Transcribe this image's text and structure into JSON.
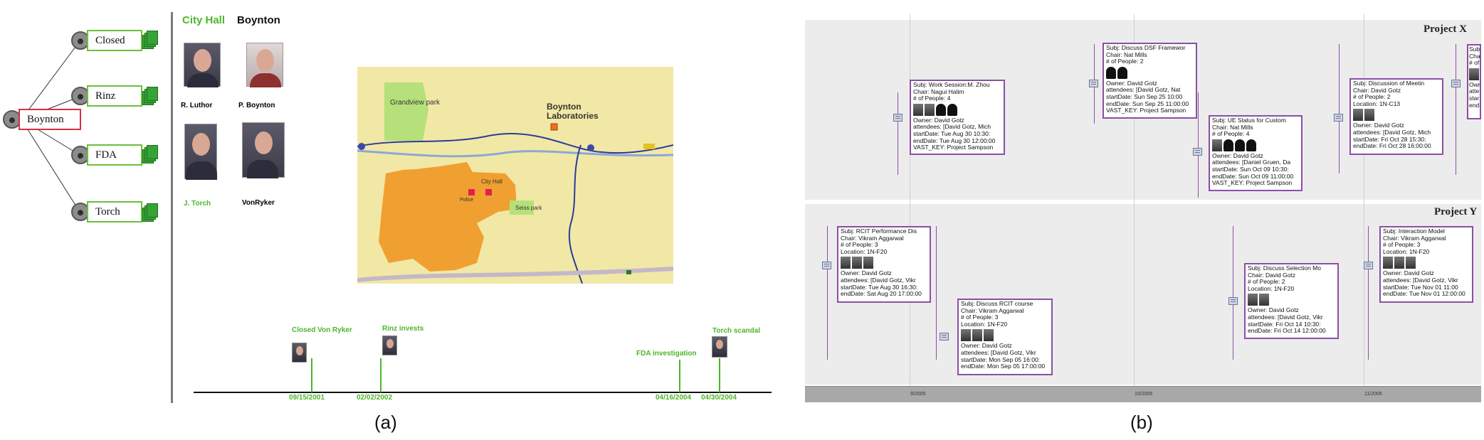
{
  "panel_a": {
    "tree": {
      "root": "Boynton",
      "children": [
        "Closed",
        "Rinz",
        "FDA",
        "Torch"
      ]
    },
    "categories": {
      "city_hall": "City Hall",
      "boynton": "Boynton"
    },
    "people": [
      {
        "name": "R. Luthor",
        "color": "#000000"
      },
      {
        "name": "P. Boynton",
        "color": "#000000"
      },
      {
        "name": "J. Torch",
        "color": "#4db52a"
      },
      {
        "name": "VonRyker",
        "color": "#000000"
      }
    ],
    "map": {
      "labels": {
        "grandview": "Grandview park",
        "boynton_labs": "Boynton Laboratories",
        "city_hall": "City Hall",
        "police": "Police",
        "seiss": "Seiss park"
      }
    },
    "timeline": {
      "events": [
        {
          "label": "Closed Von Ryker",
          "date": "09/15/2001"
        },
        {
          "label": "Rinz invests",
          "date": "02/02/2002"
        },
        {
          "label": "FDA investigation",
          "date": "04/16/2004"
        },
        {
          "label": "Torch scandal",
          "date": "04/30/2004"
        }
      ]
    },
    "caption": "(a)"
  },
  "panel_b": {
    "projects": {
      "x": "Project X",
      "y": "Project Y"
    },
    "axis_ticks": [
      "9/2005",
      "10/2005",
      "11/2005"
    ],
    "cards_x": [
      {
        "lines": [
          "Subj: Work Session:M. Zhou",
          "Chair: Nagui Halim",
          "# of People: 4"
        ],
        "faces": [
          "p",
          "p",
          "s",
          "s"
        ],
        "after": [
          "Owner: David Gotz",
          "attendees: [David Gotz, Mich",
          "startDate: Tue Aug 30 10:30:",
          "endDate: Tue Aug 30 12:00:00",
          "VAST_KEY: Project Sampson"
        ]
      },
      {
        "lines": [
          "Subj: Discuss DSF Framewor",
          "Chair: Nat Mills",
          "# of People: 2"
        ],
        "faces": [
          "s",
          "s"
        ],
        "after": [
          "Owner: David Gotz",
          "attendees: [David Gotz, Nat",
          "startDate: Sun Sep 25 10:00",
          "endDate: Sun Sep 25 11:00:00",
          "VAST_KEY: Project Sampson"
        ]
      },
      {
        "lines": [
          "Subj: UE Status for Custom",
          "Chair: Nat Mills",
          "# of People: 4"
        ],
        "faces": [
          "p",
          "s",
          "s",
          "s"
        ],
        "after": [
          "Owner: David Gotz",
          "attendees: [Daniel Gruen, Da",
          "startDate: Sun Oct 09 10:30:",
          "endDate: Sun Oct 09 11:00:00",
          "VAST_KEY: Project Sampson"
        ]
      },
      {
        "lines": [
          "Subj: Discussion of Meetin",
          "Chair: David Gotz",
          "# of People: 2",
          "Location: 1N-C13"
        ],
        "faces": [
          "p",
          "p"
        ],
        "after": [
          "Owner: David Gotz",
          "attendees: [David Gotz, Mich",
          "startDate: Fri Oct 28 15:30:",
          "endDate: Fri Oct 28 16:00:00"
        ]
      },
      {
        "lines": [
          "Subj",
          "Cha",
          "# of"
        ],
        "faces": [
          "p"
        ],
        "after": [
          "Own",
          "atte",
          "star",
          "end"
        ]
      }
    ],
    "cards_y": [
      {
        "lines": [
          "Subj: RCIT Performance Dis",
          "Chair: Vikram Aggarwal",
          "# of People: 3",
          "Location: 1N-F20"
        ],
        "faces": [
          "p",
          "p",
          "p"
        ],
        "after": [
          "Owner: David Gotz",
          "attendees: [David Gotz, Vikr",
          "startDate: Tue Aug 30 16:30:",
          "endDate: Sat Aug 20 17:00:00"
        ]
      },
      {
        "lines": [
          "Subj: Discuss RCIT course",
          "Chair: Vikram Aggarwal",
          "# of People: 3",
          "Location: 1N-F20"
        ],
        "faces": [
          "p",
          "p",
          "p"
        ],
        "after": [
          "Owner: David Gotz",
          "attendees: [David Gotz, Vikr",
          "startDate: Mon Sep 05 16:00:",
          "endDate: Mon Sep 05 17:00:00"
        ]
      },
      {
        "lines": [
          "Subj: Discuss Selection Mo",
          "Chair: David Gotz",
          "# of People: 2",
          "Location: 1N-F20"
        ],
        "faces": [
          "p",
          "p"
        ],
        "after": [
          "Owner: David Gotz",
          "attendees: [David Gotz, Vikr",
          "startDate: Fri Oct 14 10:30:",
          "endDate: Fri Oct 14 12:00:00"
        ]
      },
      {
        "lines": [
          "Subj: Interaction Model",
          "Chair: Vikram Aggarwal",
          "# of People: 3",
          "Location: 1N-F20"
        ],
        "faces": [
          "p",
          "p",
          "p"
        ],
        "after": [
          "Owner: David Gotz",
          "attendees: [David Gotz, Vikr",
          "startDate: Tue Nov 01 11:00",
          "endDate: Tue Nov 01 12:00:00"
        ]
      }
    ],
    "caption": "(b)"
  }
}
